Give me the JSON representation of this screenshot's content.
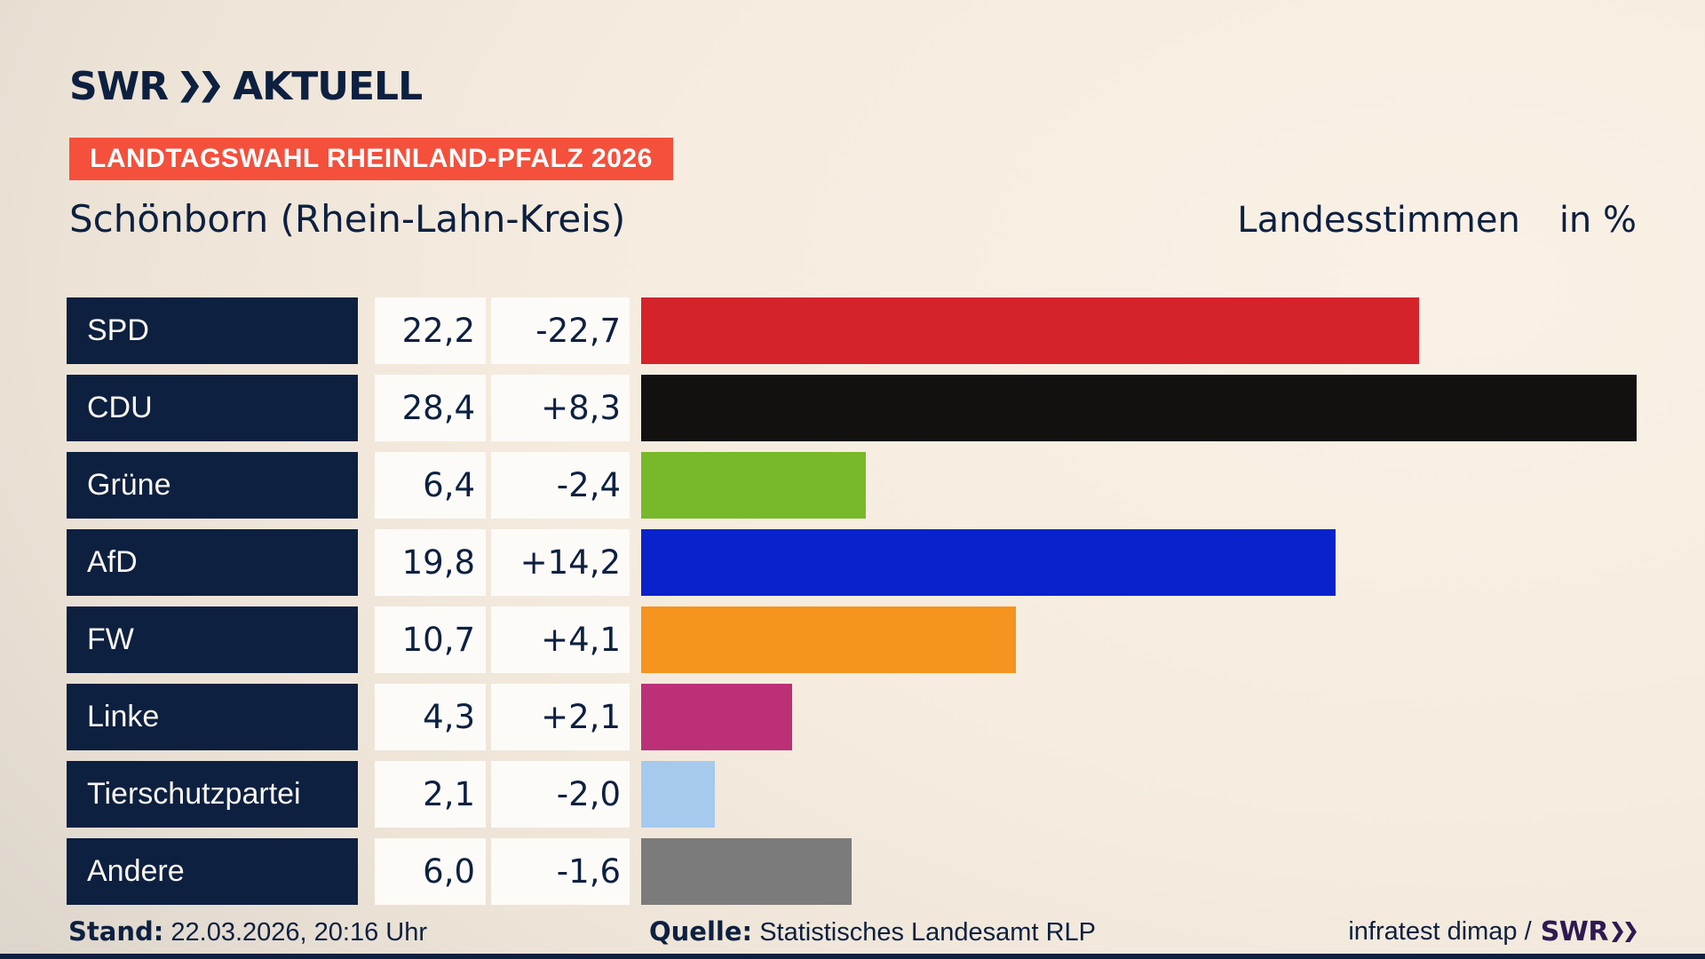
{
  "brand": {
    "name": "SWR",
    "suffix": "AKTUELL",
    "navy": "#0d2040"
  },
  "badge": {
    "label": "LANDTAGSWAHL RHEINLAND-PFALZ 2026",
    "bg_color": "#f4503c"
  },
  "header": {
    "title": "Schönborn (Rhein-Lahn-Kreis)",
    "measure": "Landesstimmen",
    "unit": "in %"
  },
  "chart_data": {
    "type": "bar",
    "orientation": "horizontal",
    "title": "Landesstimmen in %",
    "unit": "percent",
    "xlim": [
      0,
      28.7
    ],
    "grid": false,
    "categories": [
      "SPD",
      "CDU",
      "Grüne",
      "AfD",
      "FW",
      "Linke",
      "Tierschutzpartei",
      "Andere"
    ],
    "values": [
      22.2,
      28.4,
      6.4,
      19.8,
      10.7,
      4.3,
      2.1,
      6.0
    ],
    "value_labels": [
      "22,2",
      "28,4",
      "6,4",
      "19,8",
      "10,7",
      "4,3",
      "2,1",
      "6,0"
    ],
    "changes": [
      -22.7,
      8.3,
      -2.4,
      14.2,
      4.1,
      2.1,
      -2.0,
      -1.6
    ],
    "change_labels": [
      "-22,7",
      "+8,3",
      "-2,4",
      "+14,2",
      "+4,1",
      "+2,1",
      "-2,0",
      "-1,6"
    ],
    "bar_colors": [
      "#d5232b",
      "#131110",
      "#78b929",
      "#0a22cb",
      "#f5941e",
      "#bc3078",
      "#a6c9ee",
      "#7b7b7b"
    ]
  },
  "footer": {
    "stand_label": "Stand:",
    "stand_value": "22.03.2026, 20:16 Uhr",
    "quelle_label": "Quelle:",
    "quelle_value": "Statistisches Landesamt RLP",
    "credit_text": "infratest dimap /",
    "credit_brand": "SWR"
  }
}
